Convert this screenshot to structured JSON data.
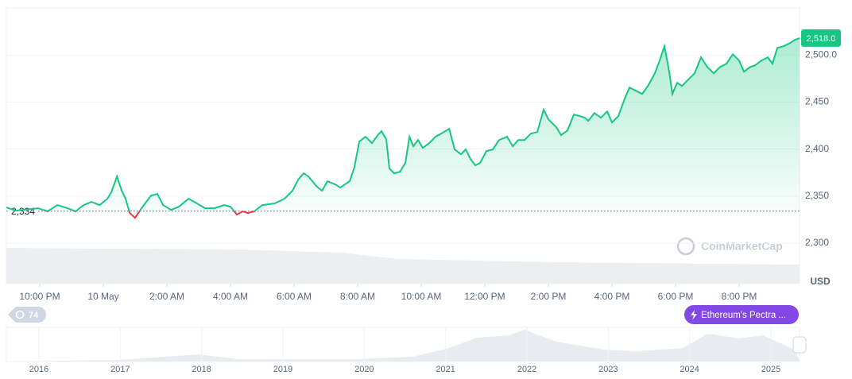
{
  "chart_data": {
    "type": "line",
    "x": [
      20.95,
      21.25,
      21.95,
      22.25,
      22.55,
      22.88,
      23.13,
      23.38,
      23.63,
      23.88,
      24.13,
      24.25,
      24.43,
      24.58,
      24.7,
      24.83,
      25.0,
      25.2,
      25.5,
      25.7,
      25.88,
      26.13,
      26.38,
      26.68,
      26.95,
      27.2,
      27.5,
      27.8,
      28.0,
      28.2,
      28.38,
      28.55,
      28.75,
      29.0,
      29.38,
      29.7,
      29.95,
      30.13,
      30.3,
      30.45,
      30.7,
      30.88,
      31.05,
      31.3,
      31.45,
      31.75,
      31.9,
      32.05,
      32.25,
      32.45,
      32.63,
      32.75,
      32.9,
      33.0,
      33.15,
      33.33,
      33.5,
      33.63,
      33.75,
      33.9,
      34.05,
      34.25,
      34.45,
      34.63,
      34.88,
      35.05,
      35.25,
      35.4,
      35.55,
      35.7,
      35.85,
      36.05,
      36.25,
      36.45,
      36.7,
      36.88,
      37.05,
      37.25,
      37.45,
      37.65,
      37.85,
      38.0,
      38.25,
      38.4,
      38.6,
      38.8,
      39.0,
      39.15,
      39.25,
      39.45,
      39.65,
      39.85,
      40.0,
      40.2,
      40.4,
      40.55,
      40.75,
      40.95,
      41.13,
      41.35,
      41.5,
      41.65,
      41.8,
      41.9,
      42.05,
      42.2,
      42.4,
      42.6,
      42.8,
      43.0,
      43.2,
      43.4,
      43.6,
      43.8,
      44.0,
      44.15,
      44.35,
      44.5,
      44.7,
      44.9,
      45.05,
      45.2,
      45.4,
      45.6,
      45.75,
      45.9
    ],
    "series": [
      {
        "color": "#16c784",
        "values": [
          2338,
          2334.6,
          2337.1,
          2333.8,
          2340.5,
          2337.1,
          2333.8,
          2340.5,
          2343.9,
          2340.5,
          2347.3,
          2354.0,
          2370.9,
          2355.7,
          2347.3,
          2332.1,
          2327.0,
          2337.1,
          2350.6,
          2352.3,
          2340.5,
          2335.4,
          2338.8,
          2347.3,
          2342.2,
          2337.1,
          2337.1,
          2340.5,
          2338.8,
          2330.4,
          2333.8,
          2332.1,
          2333.8,
          2340.5,
          2342.2,
          2347.3,
          2355.7,
          2367.5,
          2374.3,
          2370.9,
          2360.8,
          2355.7,
          2365.8,
          2362.4,
          2359.1,
          2365.8,
          2381.0,
          2408.0,
          2413.1,
          2406.3,
          2414.8,
          2419.0,
          2410.5,
          2379.3,
          2374.3,
          2375.9,
          2385.2,
          2413.1,
          2403.0,
          2409.7,
          2401.3,
          2406.3,
          2413.1,
          2416.5,
          2421.5,
          2399.6,
          2394.5,
          2399.6,
          2389.5,
          2382.7,
          2385.2,
          2397.9,
          2399.6,
          2409.7,
          2413.1,
          2403.0,
          2409.7,
          2409.7,
          2416.5,
          2418.1,
          2441.8,
          2431.6,
          2423.2,
          2414.8,
          2419.8,
          2436.7,
          2435.0,
          2433.3,
          2430.0,
          2438.4,
          2433.3,
          2440.1,
          2428.3,
          2435.0,
          2453.6,
          2465.4,
          2462.0,
          2458.6,
          2467.1,
          2480.6,
          2494.1,
          2509.3,
          2482.3,
          2458.6,
          2470.5,
          2467.1,
          2473.8,
          2480.6,
          2497.5,
          2487.3,
          2480.6,
          2487.3,
          2490.7,
          2500.8,
          2494.1,
          2482.3,
          2487.3,
          2489.0,
          2494.1,
          2497.5,
          2490.7,
          2507.6,
          2509.3,
          2512.7,
          2516.0,
          2518
        ]
      }
    ],
    "below_color": "#ea3943",
    "baseline": {
      "value": 2334,
      "label": "2,334"
    },
    "price_tag": {
      "value": 2518,
      "label": "2,518.0"
    },
    "xlim": [
      20.95,
      45.9
    ],
    "xticks": [
      {
        "value": 22,
        "label": "10:00 PM"
      },
      {
        "value": 24,
        "label": "10 May"
      },
      {
        "value": 26,
        "label": "2:00 AM"
      },
      {
        "value": 28,
        "label": "4:00 AM"
      },
      {
        "value": 30,
        "label": "6:00 AM"
      },
      {
        "value": 32,
        "label": "8:00 AM"
      },
      {
        "value": 34,
        "label": "10:00 AM"
      },
      {
        "value": 36,
        "label": "12:00 PM"
      },
      {
        "value": 38,
        "label": "2:00 PM"
      },
      {
        "value": 40,
        "label": "4:00 PM"
      },
      {
        "value": 42,
        "label": "6:00 PM"
      },
      {
        "value": 44,
        "label": "8:00 PM"
      }
    ],
    "ylim": [
      2257,
      2550
    ],
    "yticks": [
      {
        "value": 2300,
        "label": "2,300"
      },
      {
        "value": 2350,
        "label": "2,350"
      },
      {
        "value": 2400,
        "label": "2,400"
      },
      {
        "value": 2450,
        "label": "2,450"
      },
      {
        "value": 2500,
        "label": "2,500.0"
      }
    ],
    "grid": true,
    "currency": "USD",
    "watermark": "CoinMarketCap",
    "badge": "74",
    "event": "Ethereum's Pectra ...",
    "navigator_years": [
      2016,
      2017,
      2018,
      2019,
      2020,
      2021,
      2022,
      2023,
      2024,
      2025
    ]
  }
}
